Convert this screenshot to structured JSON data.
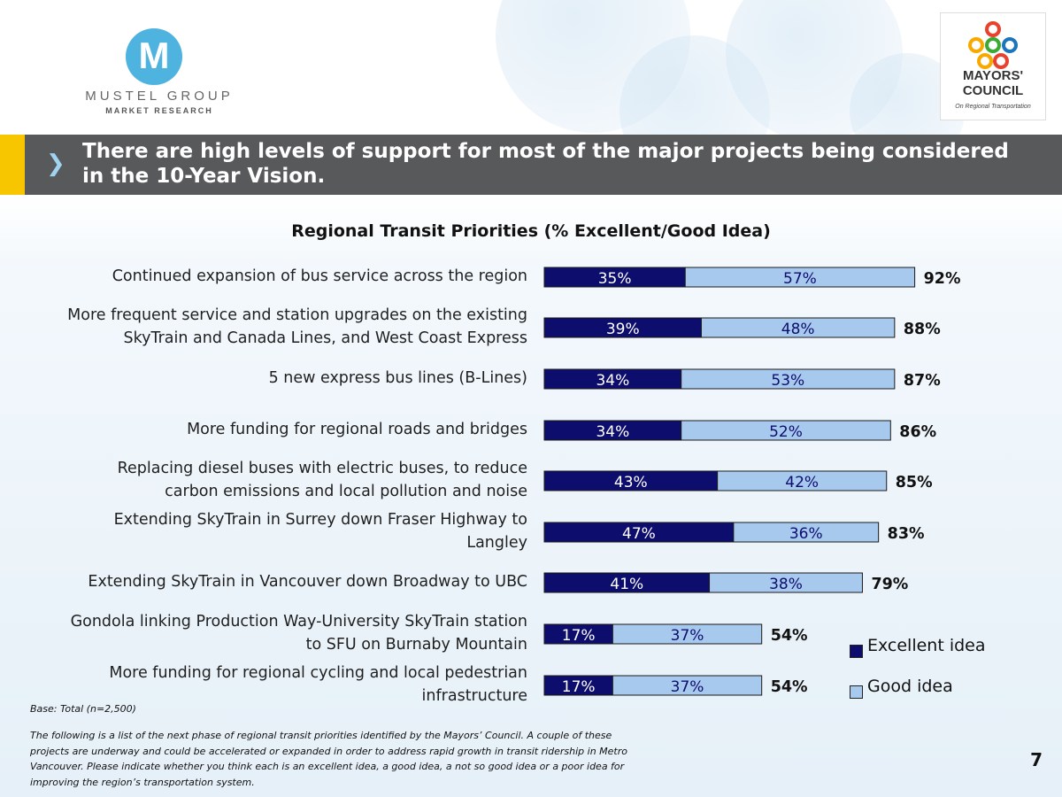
{
  "header": {
    "left_logo": {
      "mark": "M",
      "name": "MUSTEL GROUP",
      "tagline": "MARKET RESEARCH"
    },
    "right_logo": {
      "title_line1": "MAYORS'",
      "title_line2": "COUNCIL",
      "subtitle": "On Regional Transportation",
      "ring_colors": [
        "#e8412c",
        "#f7a900",
        "#3aaa35",
        "#1c75bc"
      ]
    }
  },
  "title": {
    "line1": "There are high levels of support for most of the major projects being considered",
    "line2": "in the 10-Year Vision."
  },
  "colors": {
    "excellent": "#0d0d6e",
    "good": "#a8c9ee",
    "title_bar": "#58595b",
    "accent": "#f7c600"
  },
  "chart_data": {
    "type": "bar",
    "orientation": "horizontal",
    "stacked": true,
    "title": "Regional Transit Priorities (% Excellent/Good Idea)",
    "categories": [
      [
        "Continued expansion of bus service across the region"
      ],
      [
        "More frequent service and station upgrades on the existing",
        "SkyTrain and Canada Lines, and West Coast Express"
      ],
      [
        "5 new express bus lines (B-Lines)"
      ],
      [
        "More funding for regional roads and bridges"
      ],
      [
        "Replacing diesel buses with electric buses, to reduce",
        "carbon emissions and local pollution and noise"
      ],
      [
        "Extending SkyTrain in Surrey down Fraser Highway to",
        "Langley"
      ],
      [
        "Extending SkyTrain in Vancouver down Broadway to UBC"
      ],
      [
        "Gondola linking Production Way-University SkyTrain station",
        "to SFU on Burnaby Mountain"
      ],
      [
        "More funding for regional cycling and local pedestrian",
        "infrastructure"
      ]
    ],
    "series": [
      {
        "name": "Excellent idea",
        "values": [
          35,
          39,
          34,
          34,
          43,
          47,
          41,
          17,
          17
        ]
      },
      {
        "name": "Good idea",
        "values": [
          57,
          48,
          53,
          52,
          42,
          36,
          38,
          37,
          37
        ]
      }
    ],
    "totals": [
      92,
      88,
      87,
      86,
      85,
      83,
      79,
      54,
      54
    ],
    "value_suffix": "%",
    "xlim": [
      0,
      100
    ],
    "legend_position": "bottom-right",
    "grid": false
  },
  "notes": {
    "base": "Base:   Total (n=2,500)",
    "question": "The following is a list of the next phase of regional transit priorities identified by the Mayors’ Council.  A couple of these projects are underway and could be accelerated or expanded in order to address rapid growth in transit ridership in Metro Vancouver. Please indicate whether you think each is an excellent idea, a good idea, a not so good idea or a poor idea for improving the region’s transportation system."
  },
  "page_number": "7"
}
